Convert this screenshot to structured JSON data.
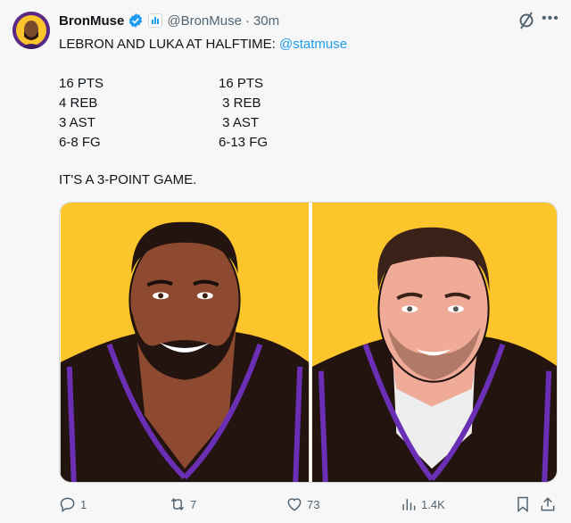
{
  "tweet": {
    "display_name": "BronMuse",
    "handle": "@BronMuse",
    "separator": "·",
    "time": "30m",
    "verified": true,
    "line1": "LEBRON AND LUKA AT HALFTIME: ",
    "mention": "@statmuse",
    "left_stats": [
      "16 PTS",
      "4 REB",
      "3 AST",
      "6-8 FG"
    ],
    "right_stats": [
      "16 PTS",
      " 3 REB",
      " 3 AST",
      "6-13 FG"
    ],
    "closer": "IT'S A 3-POINT GAME."
  },
  "actions": {
    "replies": "1",
    "reposts": "7",
    "likes": "73",
    "views": "1.4K"
  },
  "colors": {
    "accent": "#1d9bf0",
    "background": "#f7f7f7",
    "media_bg": "#fdc52c",
    "jersey_trim": "#6a2fb5"
  }
}
